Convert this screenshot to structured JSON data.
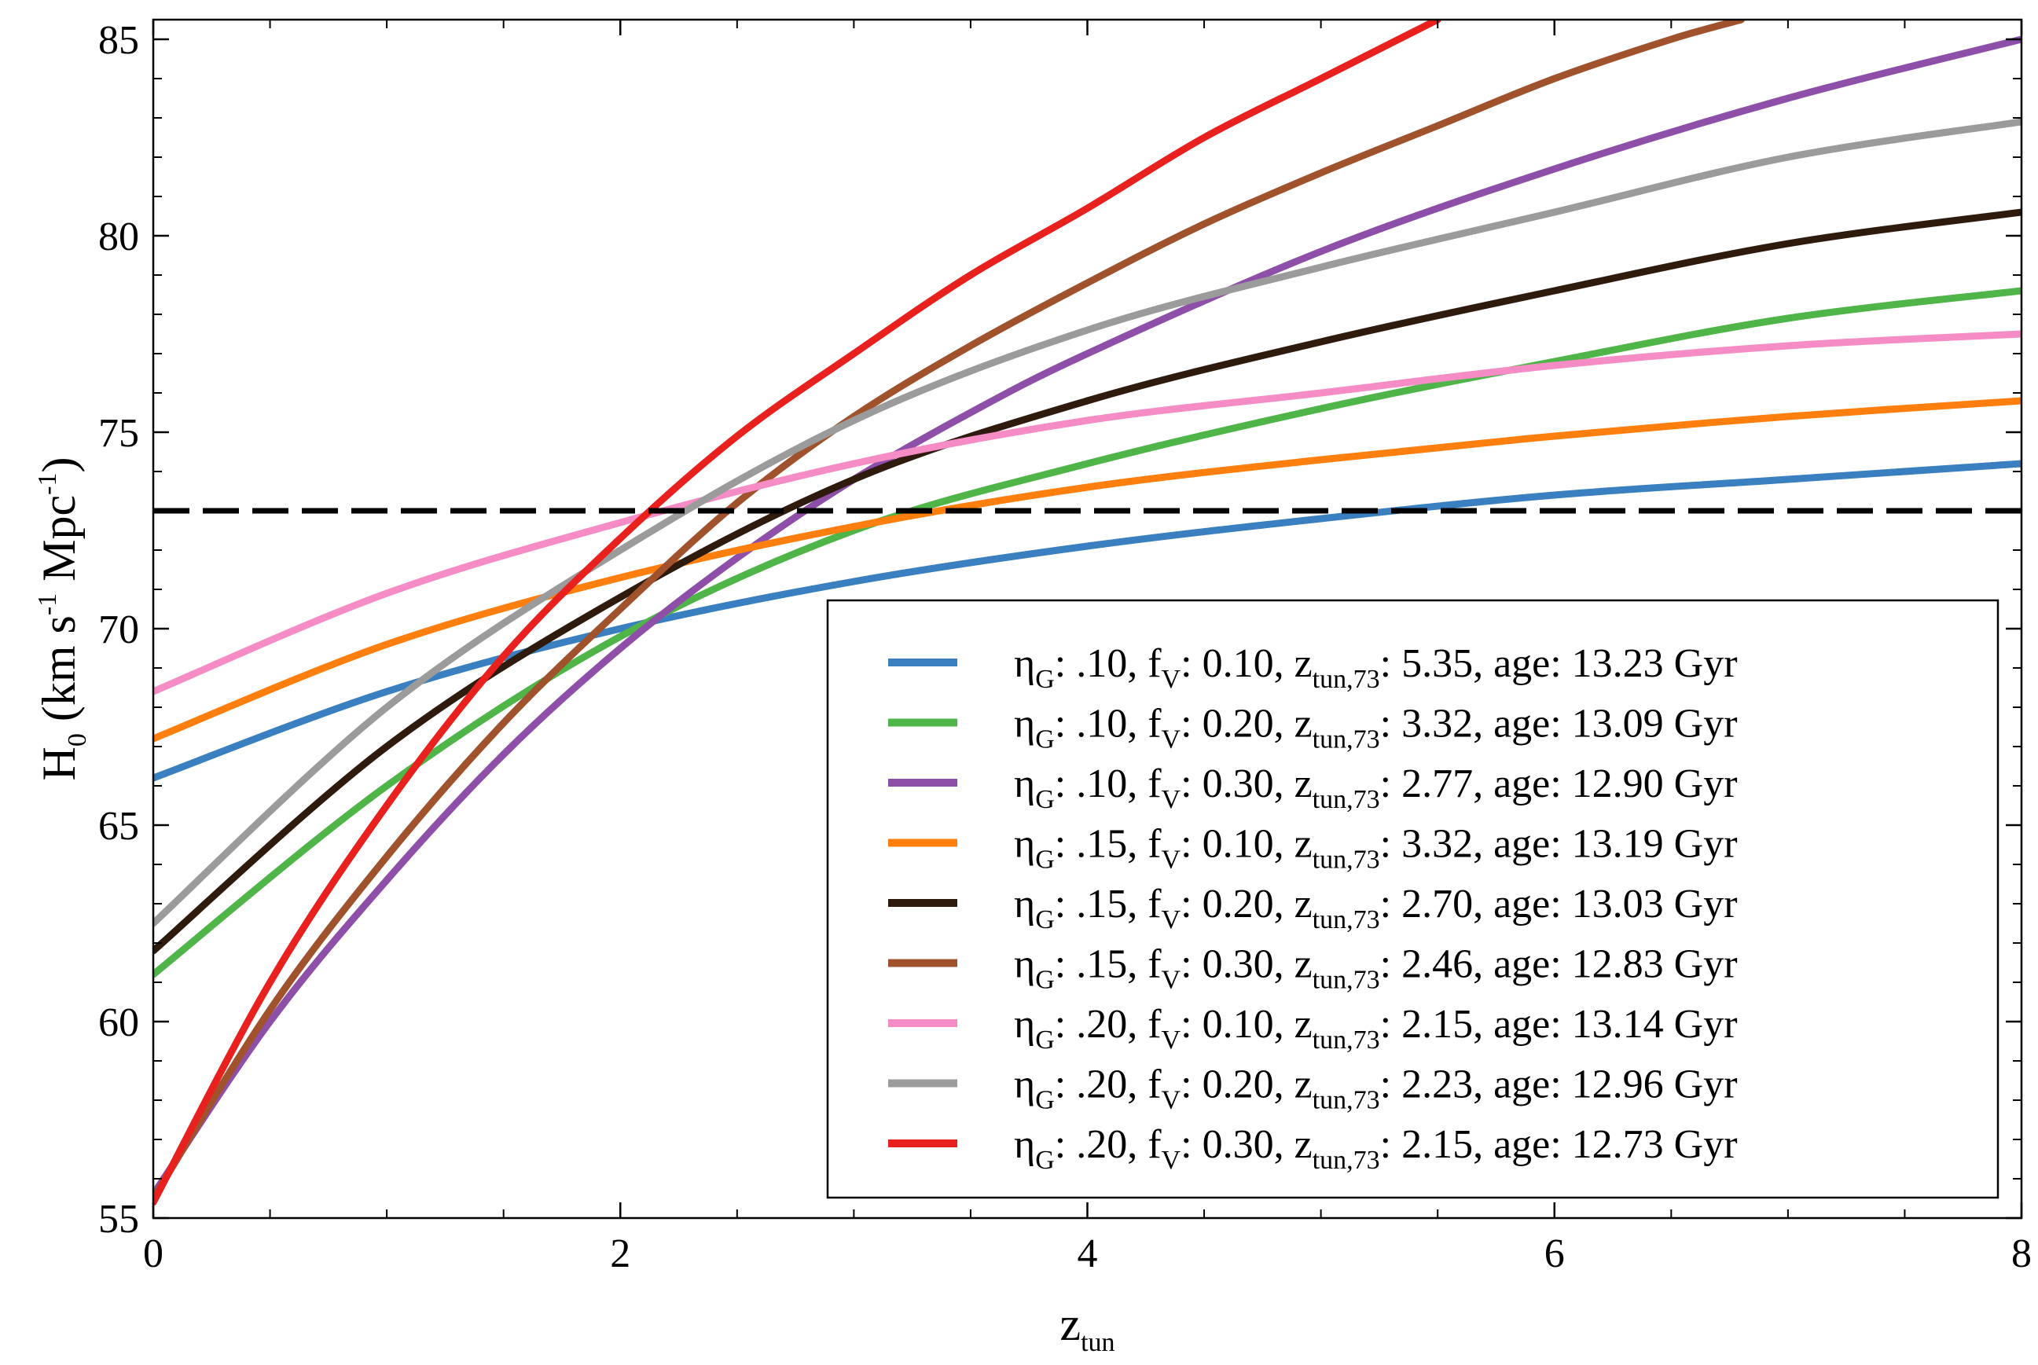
{
  "chart_data": {
    "type": "line",
    "title": "",
    "xlabel": {
      "main": "z",
      "sub": "tun"
    },
    "ylabel": {
      "main": "H",
      "sub": "0",
      "unit_pre": " (km s",
      "exp1": "-1",
      "unit_mid": " Mpc",
      "exp2": "-1",
      "unit_post": ")"
    },
    "xlim": [
      0,
      8
    ],
    "ylim": [
      55,
      85.5
    ],
    "xticks": [
      0,
      2,
      4,
      6,
      8
    ],
    "yticks": [
      55,
      60,
      65,
      70,
      75,
      80,
      85
    ],
    "xticklabels": [
      "0",
      "2",
      "4",
      "6",
      "8"
    ],
    "yticklabels": [
      "55",
      "60",
      "65",
      "70",
      "75",
      "80",
      "85"
    ],
    "grid": false,
    "legend_position": "bottom-right",
    "reference_line": {
      "y": 73,
      "style": "dashed",
      "color": "#000000"
    },
    "series": [
      {
        "name": "ηG: .10, fV: 0.10, ztun,73: 5.35,  age: 13.23 Gyr",
        "color": "#3a7fbf",
        "legend": {
          "eta": ".10",
          "fv": "0.10",
          "ztun": "5.35,",
          "age": "13.23 Gyr"
        },
        "x": [
          0,
          1,
          2,
          3,
          4,
          5,
          6,
          7,
          8
        ],
        "y": [
          66.2,
          68.4,
          70.0,
          71.2,
          72.1,
          72.8,
          73.4,
          73.8,
          74.2
        ]
      },
      {
        "name": "ηG: .10, fV: 0.20, ztun,73: 3.32,  age: 13.09 Gyr",
        "color": "#4fb548",
        "legend": {
          "eta": ".10",
          "fv": "0.20",
          "ztun": "3.32,",
          "age": "13.09 Gyr"
        },
        "x": [
          0,
          1,
          2,
          3,
          4,
          5,
          6,
          7,
          8
        ],
        "y": [
          61.2,
          66.0,
          69.8,
          72.5,
          74.2,
          75.6,
          76.8,
          77.9,
          78.6
        ]
      },
      {
        "name": "ηG: .10, fV: 0.30, ztun,73: 2.77,  age: 12.90 Gyr",
        "color": "#8e4fa8",
        "legend": {
          "eta": ".10",
          "fv": "0.30",
          "ztun": "2.77,",
          "age": "12.90 Gyr"
        },
        "x": [
          0,
          0.5,
          1,
          1.5,
          2,
          2.5,
          3,
          3.5,
          4,
          5,
          6,
          7,
          8
        ],
        "y": [
          55.6,
          60.0,
          63.6,
          66.8,
          69.5,
          71.8,
          73.8,
          75.5,
          77.0,
          79.6,
          81.7,
          83.5,
          85.0
        ]
      },
      {
        "name": "ηG: .15, fV: 0.10, ztun,73: 3.32,  age: 13.19 Gyr",
        "color": "#ff7f0e",
        "legend": {
          "eta": ".15",
          "fv": "0.10",
          "ztun": "3.32,",
          "age": "13.19 Gyr"
        },
        "x": [
          0,
          1,
          2,
          3,
          4,
          5,
          6,
          7,
          8
        ],
        "y": [
          67.2,
          69.6,
          71.3,
          72.6,
          73.6,
          74.3,
          74.9,
          75.4,
          75.8
        ]
      },
      {
        "name": "ηG: .15, fV: 0.20, ztun,73: 2.70,  age: 13.03 Gyr",
        "color": "#2f1a0e",
        "legend": {
          "eta": ".15",
          "fv": "0.20",
          "ztun": "2.70,",
          "age": "13.03 Gyr"
        },
        "x": [
          0,
          1,
          2,
          3,
          4,
          5,
          6,
          7,
          8
        ],
        "y": [
          61.8,
          67.0,
          70.8,
          73.8,
          75.8,
          77.3,
          78.6,
          79.8,
          80.6
        ]
      },
      {
        "name": "ηG: .15, fV: 0.30, ztun,73: 2.46,  age: 12.83 Gyr",
        "color": "#a0522d",
        "legend": {
          "eta": ".15",
          "fv": "0.30",
          "ztun": "2.46,",
          "age": "12.83 Gyr"
        },
        "x": [
          0,
          0.5,
          1,
          1.5,
          2,
          2.5,
          3,
          3.5,
          4,
          4.5,
          5,
          5.5,
          6,
          6.5,
          6.8
        ],
        "y": [
          55.5,
          60.3,
          64.2,
          67.6,
          70.5,
          73.2,
          75.4,
          77.2,
          78.8,
          80.3,
          81.6,
          82.8,
          84.0,
          85.0,
          85.5
        ]
      },
      {
        "name": "ηG: .20, fV: 0.10, ztun,73: 2.15,  age: 13.14 Gyr",
        "color": "#f58cc5",
        "legend": {
          "eta": ".20",
          "fv": "0.10",
          "ztun": "2.15,",
          "age": "13.14 Gyr"
        },
        "x": [
          0,
          1,
          2,
          3,
          4,
          5,
          6,
          7,
          8
        ],
        "y": [
          68.4,
          70.9,
          72.7,
          74.2,
          75.3,
          76.0,
          76.7,
          77.2,
          77.5
        ]
      },
      {
        "name": "ηG: .20, fV: 0.20, ztun,73: 2.23,  age: 12.96 Gyr",
        "color": "#9b9b9b",
        "legend": {
          "eta": ".20",
          "fv": "0.20",
          "ztun": "2.23,",
          "age": "12.96 Gyr"
        },
        "x": [
          0,
          1,
          2,
          3,
          4,
          5,
          6,
          7,
          8
        ],
        "y": [
          62.5,
          68.0,
          72.0,
          75.3,
          77.6,
          79.2,
          80.6,
          82.0,
          82.9
        ]
      },
      {
        "name": "ηG: .20, fV: 0.30, ztun,73: 2.15,  age: 12.73 Gyr",
        "color": "#e8211f",
        "legend": {
          "eta": ".20",
          "fv": "0.30",
          "ztun": "2.15,",
          "age": "12.73 Gyr"
        },
        "x": [
          0,
          0.5,
          1,
          1.5,
          2,
          2.5,
          3,
          3.5,
          4,
          4.5,
          5,
          5.5
        ],
        "y": [
          55.4,
          61.0,
          65.5,
          69.3,
          72.3,
          74.9,
          77.0,
          79.0,
          80.7,
          82.5,
          84.0,
          85.5
        ]
      }
    ]
  }
}
